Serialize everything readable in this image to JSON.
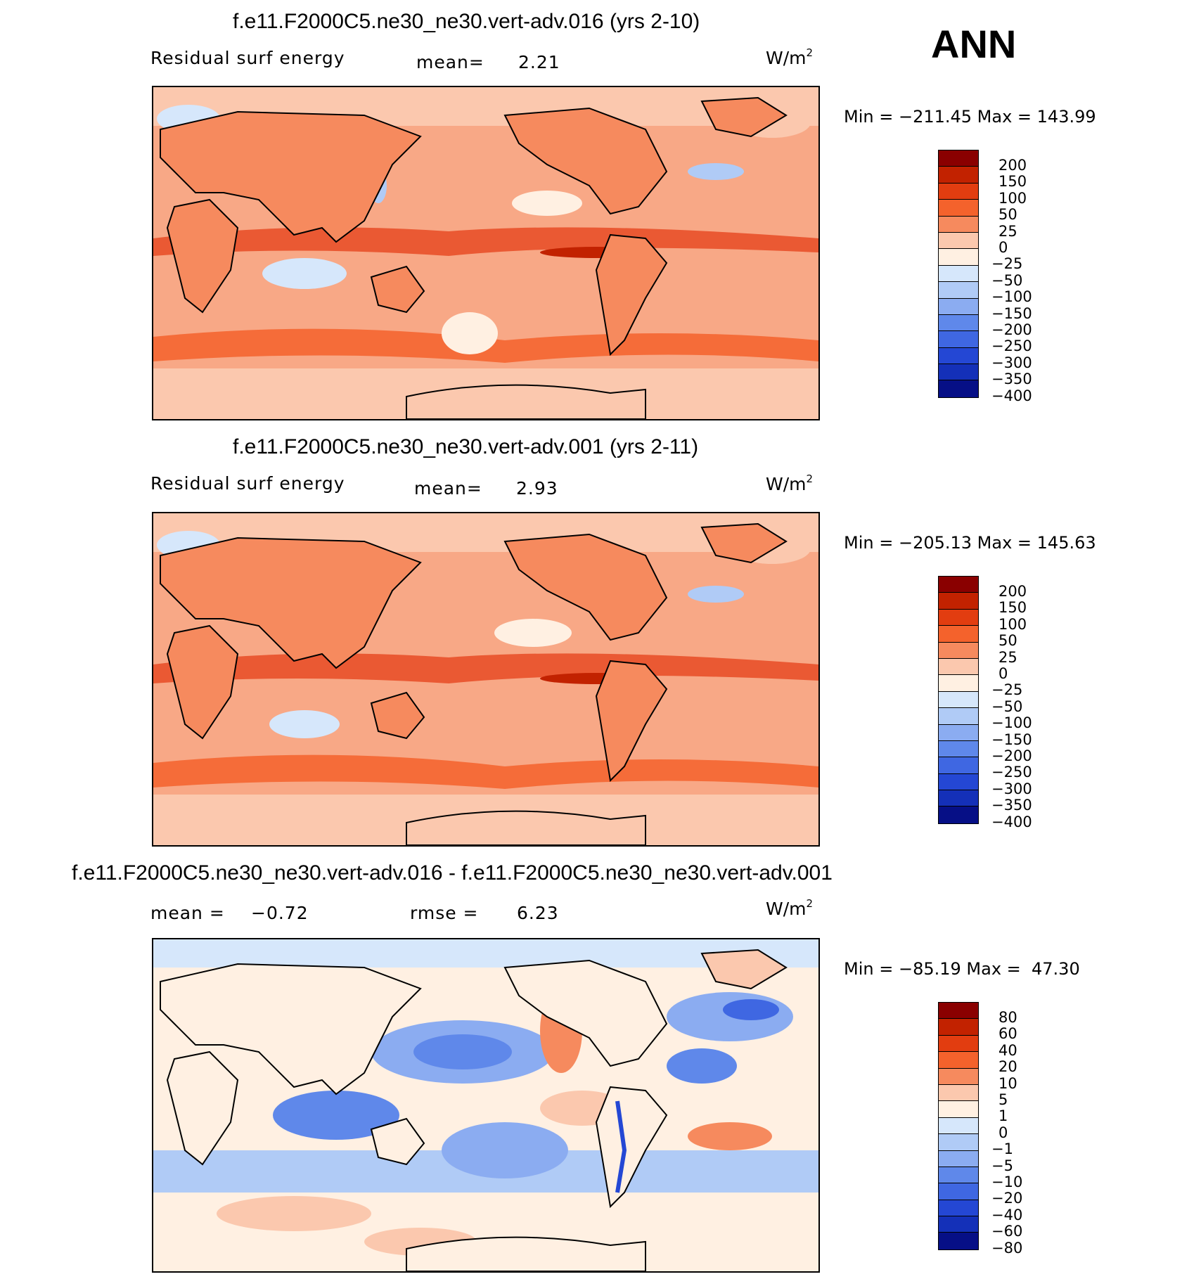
{
  "season": "ANN",
  "palette_abs": [
    "#8a0000",
    "#c22200",
    "#e23d10",
    "#f4622c",
    "#f68a5e",
    "#fbc8ae",
    "#fff0e2",
    "#d6e7fb",
    "#b0cbf6",
    "#8bacf1",
    "#5f88ea",
    "#3f67e2",
    "#2447d4",
    "#1430b8",
    "#060f86"
  ],
  "palette_diff": [
    "#8a0000",
    "#c22200",
    "#e23d10",
    "#f4622c",
    "#f68a5e",
    "#fbc8ae",
    "#fff0e2",
    "#d6e7fb",
    "#b0cbf6",
    "#8bacf1",
    "#5f88ea",
    "#3f67e2",
    "#2447d4",
    "#1430b8",
    "#060f86"
  ],
  "panels": [
    {
      "title": "f.e11.F2000C5.ne30_ne30.vert-adv.016 (yrs 2-10)",
      "variable": "Residual surf energy",
      "stat_label": "mean=",
      "stat_value": "2.21",
      "units": "W/m",
      "units_sup": "2",
      "min_label": "Min = −211.45 Max = 143.99",
      "levels": [
        "200",
        "150",
        "100",
        "50",
        "25",
        "0",
        "−25",
        "−50",
        "−100",
        "−150",
        "−200",
        "−250",
        "−300",
        "−350",
        "−400"
      ]
    },
    {
      "title": "f.e11.F2000C5.ne30_ne30.vert-adv.001 (yrs 2-11)",
      "variable": "Residual surf energy",
      "stat_label": "mean=",
      "stat_value": "2.93",
      "units": "W/m",
      "units_sup": "2",
      "min_label": "Min = −205.13 Max = 145.63",
      "levels": [
        "200",
        "150",
        "100",
        "50",
        "25",
        "0",
        "−25",
        "−50",
        "−100",
        "−150",
        "−200",
        "−250",
        "−300",
        "−350",
        "−400"
      ]
    },
    {
      "title": "f.e11.F2000C5.ne30_ne30.vert-adv.016 - f.e11.F2000C5.ne30_ne30.vert-adv.001",
      "stat_label": "mean =",
      "stat_value": "−0.72",
      "stat2_label": "rmse =",
      "stat2_value": "6.23",
      "units": "W/m",
      "units_sup": "2",
      "min_label": "Min = −85.19 Max =  47.30",
      "levels": [
        "80",
        "60",
        "40",
        "20",
        "10",
        "5",
        "1",
        "0",
        "−1",
        "−5",
        "−10",
        "−20",
        "−40",
        "−60",
        "−80"
      ]
    }
  ]
}
